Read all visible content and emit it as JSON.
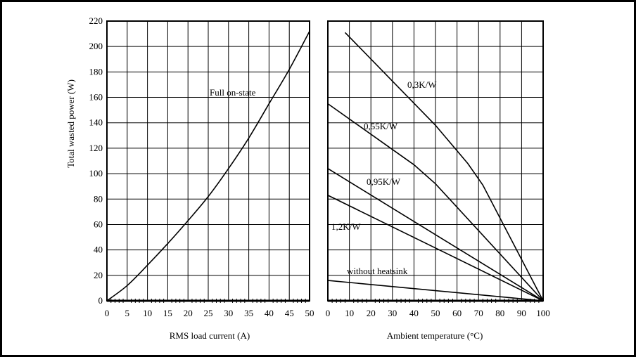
{
  "chart_data": [
    {
      "type": "line",
      "title": "",
      "xlabel": "RMS load current (A)",
      "ylabel": "Total wasted power (W)",
      "xlim": [
        0,
        50
      ],
      "ylim": [
        0,
        220
      ],
      "x_ticks": [
        0,
        5,
        10,
        15,
        20,
        25,
        30,
        35,
        40,
        45,
        50
      ],
      "y_ticks": [
        0,
        20,
        40,
        60,
        80,
        100,
        120,
        140,
        160,
        180,
        200,
        220
      ],
      "grid": true,
      "series": [
        {
          "name": "Full on-state",
          "x": [
            0,
            5,
            10,
            15,
            20,
            25,
            30,
            35,
            40,
            45,
            50
          ],
          "y": [
            0,
            12,
            28,
            45,
            63,
            82,
            104,
            128,
            155,
            182,
            212
          ]
        }
      ]
    },
    {
      "type": "line",
      "title": "",
      "xlabel": "Ambient temperature (°C)",
      "ylabel": "",
      "xlim": [
        0,
        100
      ],
      "ylim": [
        0,
        220
      ],
      "x_ticks": [
        0,
        10,
        20,
        30,
        40,
        50,
        60,
        70,
        80,
        90,
        100
      ],
      "grid": true,
      "series": [
        {
          "name": "0,3K/W",
          "x": [
            8,
            50,
            65,
            72,
            100
          ],
          "y": [
            211,
            138,
            108,
            91,
            0
          ]
        },
        {
          "name": "0,55K/W",
          "x": [
            0,
            40,
            50,
            100
          ],
          "y": [
            155,
            107,
            92,
            0
          ]
        },
        {
          "name": "0,95K/W",
          "x": [
            0,
            100
          ],
          "y": [
            104,
            0
          ]
        },
        {
          "name": "1,2K/W",
          "x": [
            0,
            100
          ],
          "y": [
            83,
            0
          ]
        },
        {
          "name": "without heatsink",
          "x": [
            0,
            100
          ],
          "y": [
            16,
            0
          ]
        }
      ]
    }
  ]
}
